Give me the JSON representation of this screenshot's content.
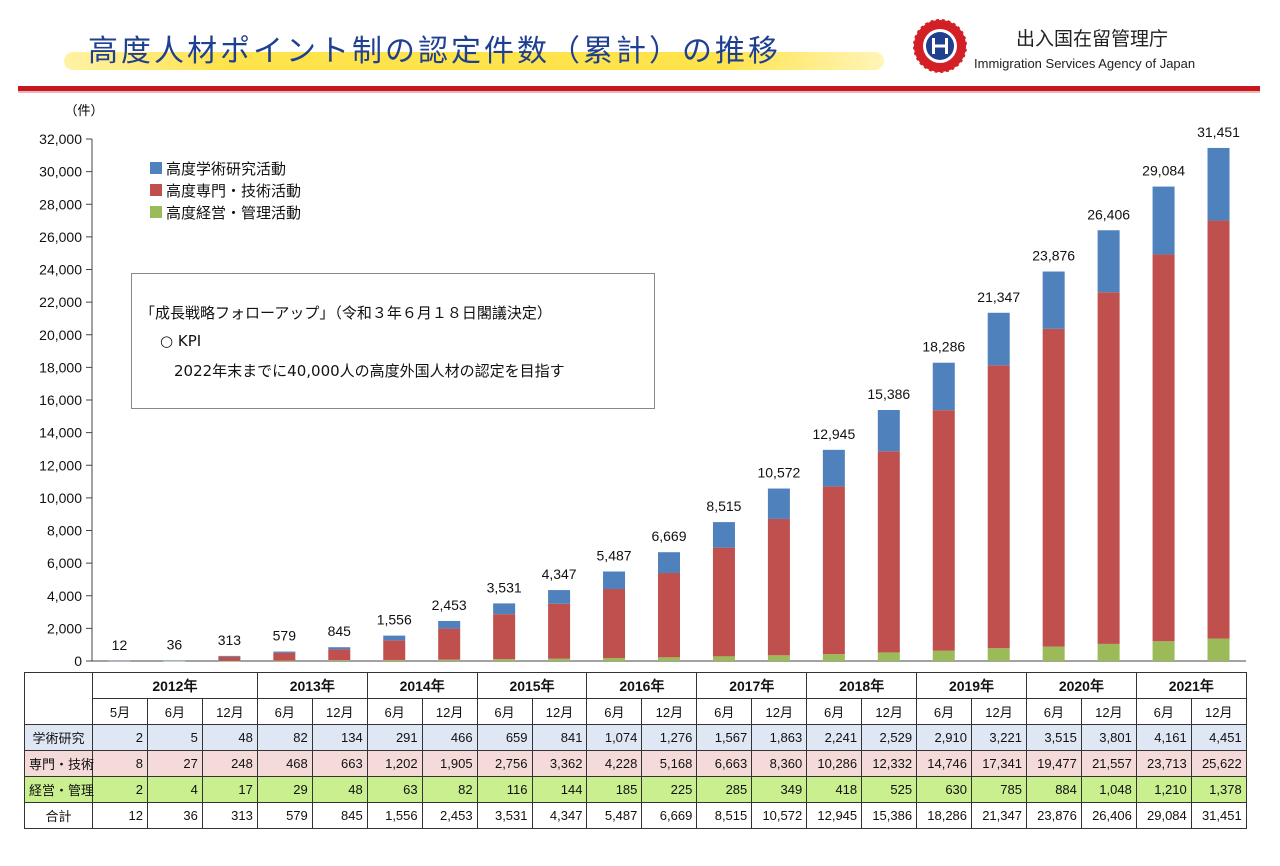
{
  "header": {
    "title": "高度人材ポイント制の認定件数（累計）の推移",
    "agency_name_ja": "出入国在留管理庁",
    "agency_name_en": "Immigration Services Agency of Japan"
  },
  "colors": {
    "academic": "#4f81bd",
    "professional": "#c0504d",
    "management": "#9bbb59",
    "title": "#1f3f91",
    "rule": "#c8161d"
  },
  "kpi": {
    "heading": "「成長戦略フォローアップ」（令和３年６月１８日閣議決定）",
    "label": "○ KPI",
    "target": "2022年末までに40,000人の高度外国人材の認定を目指す"
  },
  "chart_data": {
    "type": "bar",
    "stacked": true,
    "unit_label": "（件）",
    "ylim": [
      0,
      32000
    ],
    "yticks": [
      0,
      2000,
      4000,
      6000,
      8000,
      10000,
      12000,
      14000,
      16000,
      18000,
      20000,
      22000,
      24000,
      26000,
      28000,
      30000,
      32000
    ],
    "legend_position": "top-left",
    "grid": false,
    "categories": [
      "2012年5月",
      "2012年6月",
      "2012年12月",
      "2013年6月",
      "2013年12月",
      "2014年6月",
      "2014年12月",
      "2015年6月",
      "2015年12月",
      "2016年6月",
      "2016年12月",
      "2017年6月",
      "2017年12月",
      "2018年6月",
      "2018年12月",
      "2019年6月",
      "2019年12月",
      "2020年6月",
      "2020年12月",
      "2021年6月",
      "2021年12月"
    ],
    "series": [
      {
        "name": "高度経営・管理活動",
        "values": [
          2,
          4,
          17,
          29,
          48,
          63,
          82,
          116,
          144,
          185,
          225,
          285,
          349,
          418,
          525,
          630,
          785,
          884,
          1048,
          1210,
          1378
        ]
      },
      {
        "name": "高度専門・技術活動",
        "values": [
          8,
          27,
          248,
          468,
          663,
          1202,
          1905,
          2756,
          3362,
          4228,
          5168,
          6663,
          8360,
          10286,
          12332,
          14746,
          17341,
          19477,
          21557,
          23713,
          25622
        ]
      },
      {
        "name": "高度学術研究活動",
        "values": [
          2,
          5,
          48,
          82,
          134,
          291,
          466,
          659,
          841,
          1074,
          1276,
          1567,
          1863,
          2241,
          2529,
          2910,
          3221,
          3515,
          3801,
          4161,
          4451
        ]
      }
    ],
    "totals": [
      12,
      36,
      313,
      579,
      845,
      1556,
      2453,
      3531,
      4347,
      5487,
      6669,
      8515,
      10572,
      12945,
      15386,
      18286,
      21347,
      23876,
      26406,
      29084,
      31451
    ],
    "legend_order": [
      "高度学術研究活動",
      "高度専門・技術活動",
      "高度経営・管理活動"
    ]
  },
  "table": {
    "years": [
      {
        "label": "2012年",
        "span": 3
      },
      {
        "label": "2013年",
        "span": 2
      },
      {
        "label": "2014年",
        "span": 2
      },
      {
        "label": "2015年",
        "span": 2
      },
      {
        "label": "2016年",
        "span": 2
      },
      {
        "label": "2017年",
        "span": 2
      },
      {
        "label": "2018年",
        "span": 2
      },
      {
        "label": "2019年",
        "span": 2
      },
      {
        "label": "2020年",
        "span": 2
      },
      {
        "label": "2021年",
        "span": 2
      }
    ],
    "months": [
      "5月",
      "6月",
      "12月",
      "6月",
      "12月",
      "6月",
      "12月",
      "6月",
      "12月",
      "6月",
      "12月",
      "6月",
      "12月",
      "6月",
      "12月",
      "6月",
      "12月",
      "6月",
      "12月",
      "6月",
      "12月"
    ],
    "rows": [
      {
        "label": "学術研究",
        "key": "academic",
        "values": [
          "2",
          "5",
          "48",
          "82",
          "134",
          "291",
          "466",
          "659",
          "841",
          "1,074",
          "1,276",
          "1,567",
          "1,863",
          "2,241",
          "2,529",
          "2,910",
          "3,221",
          "3,515",
          "3,801",
          "4,161",
          "4,451"
        ]
      },
      {
        "label": "専門・技術",
        "key": "prof",
        "values": [
          "8",
          "27",
          "248",
          "468",
          "663",
          "1,202",
          "1,905",
          "2,756",
          "3,362",
          "4,228",
          "5,168",
          "6,663",
          "8,360",
          "10,286",
          "12,332",
          "14,746",
          "17,341",
          "19,477",
          "21,557",
          "23,713",
          "25,622"
        ]
      },
      {
        "label": "経営・管理",
        "key": "mgmt",
        "values": [
          "2",
          "4",
          "17",
          "29",
          "48",
          "63",
          "82",
          "116",
          "144",
          "185",
          "225",
          "285",
          "349",
          "418",
          "525",
          "630",
          "785",
          "884",
          "1,048",
          "1,210",
          "1,378"
        ]
      },
      {
        "label": "合計",
        "key": "total",
        "values": [
          "12",
          "36",
          "313",
          "579",
          "845",
          "1,556",
          "2,453",
          "3,531",
          "4,347",
          "5,487",
          "6,669",
          "8,515",
          "10,572",
          "12,945",
          "15,386",
          "18,286",
          "21,347",
          "23,876",
          "26,406",
          "29,084",
          "31,451"
        ]
      }
    ]
  }
}
